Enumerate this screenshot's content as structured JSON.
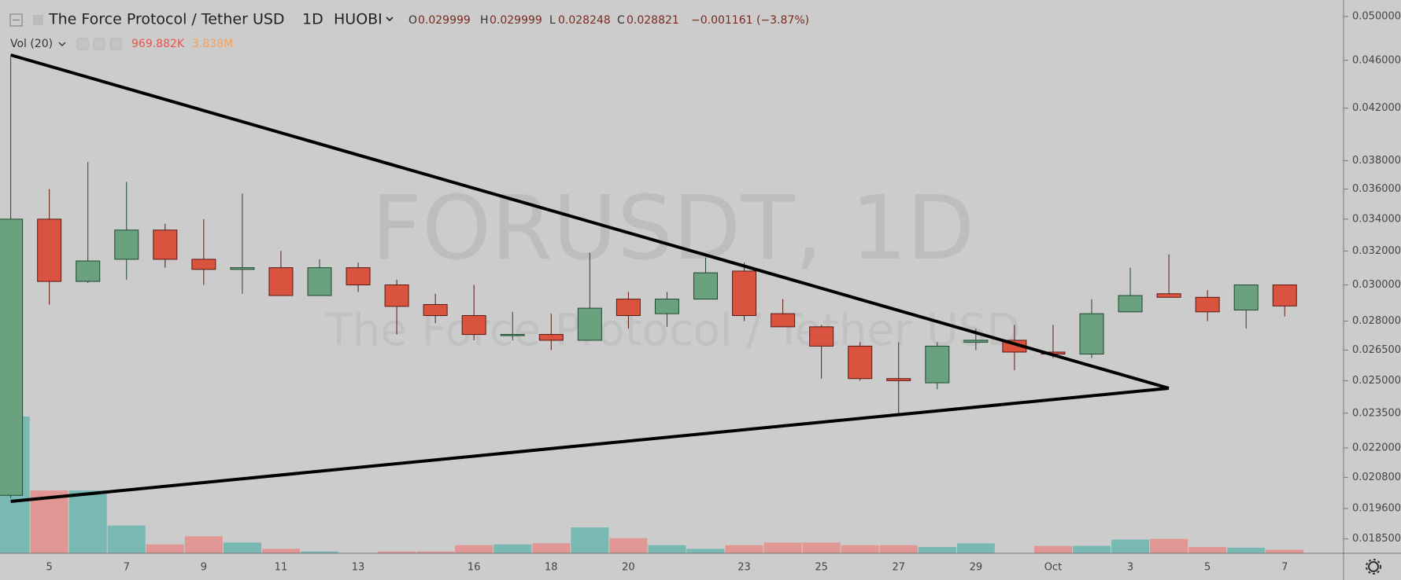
{
  "header": {
    "symbol": "The Force Protocol / Tether USD",
    "interval": "1D",
    "exchange": "HUOBI",
    "open_key": "O",
    "open": "0.029999",
    "high_key": "H",
    "high": "0.029999",
    "low_key": "L",
    "low": "0.028248",
    "close_key": "C",
    "close": "0.028821",
    "change": "−0.001161 (−3.87%)"
  },
  "watermark": "FORUSDT, 1D",
  "chart_data": {
    "type": "candlestick",
    "categories": [
      null,
      "5",
      null,
      "7",
      null,
      "9",
      null,
      "11",
      null,
      "13",
      null,
      null,
      "16",
      null,
      "18",
      null,
      "20",
      null,
      null,
      "23",
      null,
      "25",
      null,
      "27",
      null,
      "29",
      null,
      "Oct",
      null,
      "3",
      null,
      "5",
      null,
      "7"
    ],
    "open": [
      0.0201,
      0.034,
      0.0302,
      0.0315,
      0.0333,
      0.0315,
      0.0309,
      0.031,
      0.0294,
      0.031,
      0.03,
      0.0289,
      0.0283,
      0.0273,
      0.0273,
      0.027,
      0.0292,
      0.0284,
      0.0292,
      0.0308,
      0.0284,
      0.0277,
      0.0267,
      0.0251,
      0.0249,
      0.0269,
      0.027,
      0.0264,
      0.0263,
      0.0285,
      0.0295,
      0.0293,
      0.0286,
      0.029999
    ],
    "high": [
      0.0463,
      0.036,
      0.0379,
      0.0365,
      0.0337,
      0.034,
      0.0357,
      0.032,
      0.0315,
      0.0313,
      0.0303,
      0.0295,
      0.03,
      0.0285,
      0.0284,
      0.0319,
      0.0296,
      0.0296,
      0.0316,
      0.0313,
      0.0292,
      0.0278,
      0.0269,
      0.0269,
      0.0269,
      0.0276,
      0.0278,
      0.0278,
      0.0292,
      0.031,
      0.0318,
      0.0297,
      0.03,
      0.029999
    ],
    "low": [
      0.02,
      0.0289,
      0.0301,
      0.0303,
      0.031,
      0.03,
      0.0295,
      0.0294,
      0.0294,
      0.0296,
      0.0273,
      0.0279,
      0.027,
      0.027,
      0.0265,
      0.027,
      0.0276,
      0.0277,
      0.0292,
      0.028,
      0.0277,
      0.0251,
      0.025,
      0.0235,
      0.0246,
      0.0265,
      0.0255,
      0.0261,
      0.0261,
      0.0285,
      0.0293,
      0.028,
      0.0276,
      0.028248
    ],
    "close": [
      0.034,
      0.0302,
      0.0314,
      0.0333,
      0.0315,
      0.0309,
      0.031,
      0.0294,
      0.031,
      0.03,
      0.0288,
      0.0283,
      0.0273,
      0.0273,
      0.027,
      0.0287,
      0.0283,
      0.0292,
      0.0307,
      0.0283,
      0.0277,
      0.0267,
      0.0251,
      0.025,
      0.0267,
      0.027,
      0.0264,
      0.0263,
      0.0284,
      0.0294,
      0.0293,
      0.0285,
      0.03,
      0.028821
    ],
    "volume_name": "Vol (20)",
    "volume_value_label": "969.882K",
    "volume_ma_label": "3.838M",
    "volume": [
      37000000,
      17000000,
      17000000,
      7500000,
      2400000,
      4600000,
      2900000,
      1200000,
      500000,
      100000,
      500000,
      500000,
      2200000,
      2400000,
      2700000,
      7000000,
      4100000,
      2200000,
      1200000,
      2200000,
      2900000,
      2900000,
      2200000,
      2200000,
      1700000,
      2700000,
      50000,
      2000000,
      2000000,
      3700000,
      3900000,
      1700000,
      1500000,
      969882
    ],
    "log_scale": true,
    "ylim": [
      0.018,
      0.0516
    ],
    "yticks": [
      {
        "value": 0.05,
        "label": "0.050000"
      },
      {
        "value": 0.046,
        "label": "0.046000"
      },
      {
        "value": 0.042,
        "label": "0.042000"
      },
      {
        "value": 0.038,
        "label": "0.038000"
      },
      {
        "value": 0.036,
        "label": "0.036000"
      },
      {
        "value": 0.034,
        "label": "0.034000"
      },
      {
        "value": 0.032,
        "label": "0.032000"
      },
      {
        "value": 0.03,
        "label": "0.030000"
      },
      {
        "value": 0.028,
        "label": "0.028000"
      },
      {
        "value": 0.0265,
        "label": "0.026500"
      },
      {
        "value": 0.025,
        "label": "0.025000"
      },
      {
        "value": 0.0235,
        "label": "0.023500"
      },
      {
        "value": 0.022,
        "label": "0.022000"
      },
      {
        "value": 0.0208,
        "label": "0.020800"
      },
      {
        "value": 0.0196,
        "label": "0.019600"
      },
      {
        "value": 0.0185,
        "label": "0.018500"
      }
    ],
    "up_color": "#6aa17f",
    "down_color": "#d9533f",
    "up_border": "#1f4a30",
    "down_border": "#5a1a12",
    "volume_up_color": "#79b9b4",
    "volume_down_color": "#e09693"
  }
}
